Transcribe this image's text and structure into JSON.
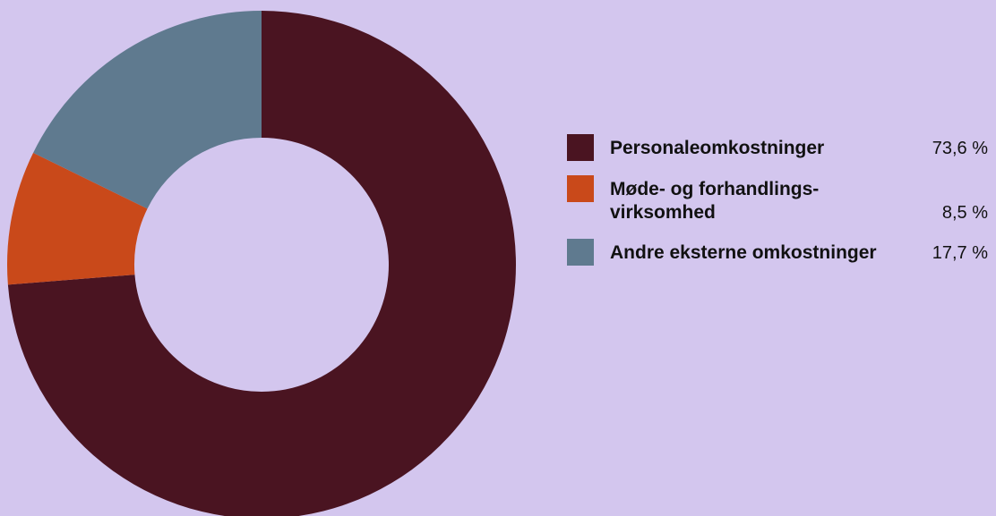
{
  "chart_data": {
    "type": "pie",
    "donut": true,
    "title": "",
    "slices": [
      {
        "label": "Personaleomkostninger",
        "value": 73.6,
        "value_label": "73,6 %",
        "color": "#4a1421"
      },
      {
        "label": "Møde- og forhandlings-\nvirksomhed",
        "value": 8.5,
        "value_label": "8,5 %",
        "color": "#c9491a"
      },
      {
        "label": "Andre eksterne omkostninger",
        "value": 17.7,
        "value_label": "17,7 %",
        "color": "#5f7a8f"
      }
    ],
    "legend_position": "right"
  },
  "colors": {
    "background": "#d3c6ee"
  }
}
